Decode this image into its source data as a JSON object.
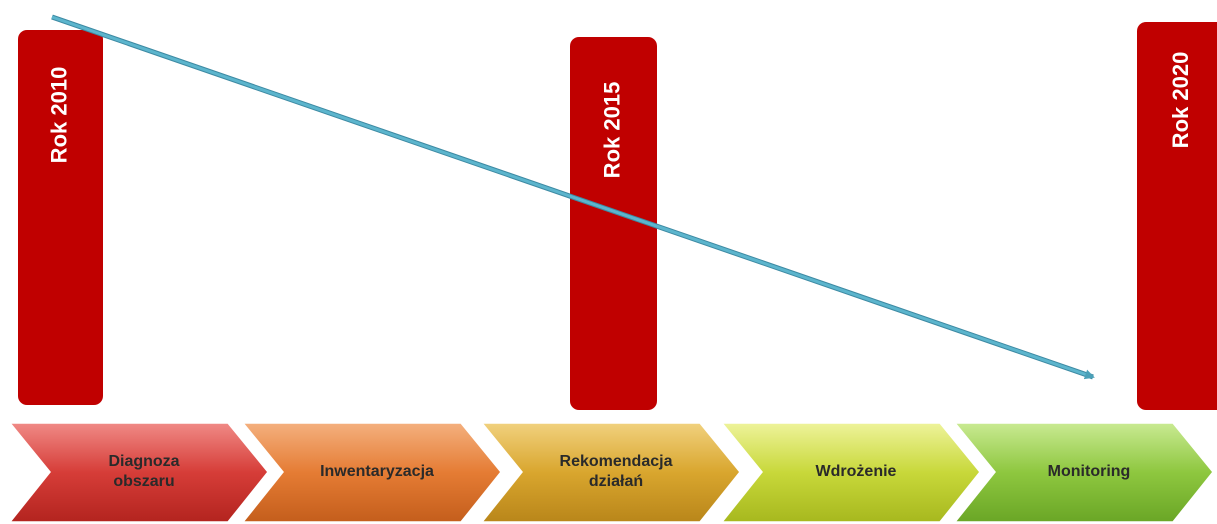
{
  "years": [
    "Rok 2010",
    "Rok 2015",
    "Rok 2020"
  ],
  "steps": [
    {
      "lines": [
        "Diagnoza",
        "obszaru"
      ]
    },
    {
      "lines": [
        "Inwentaryzacja"
      ]
    },
    {
      "lines": [
        "Rekomendacja",
        "działań"
      ]
    },
    {
      "lines": [
        "Wdrożenie"
      ]
    },
    {
      "lines": [
        "Monitoring"
      ]
    }
  ]
}
